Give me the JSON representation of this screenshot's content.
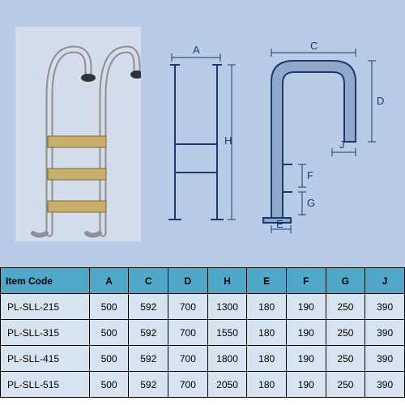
{
  "diagram": {
    "background_color": "#b8cce8",
    "photo_bg": "#d4ddeb",
    "line_color": "#1a3a6e",
    "fill_color": "#8fa8cc",
    "dim_labels": {
      "A": "A",
      "C": "C",
      "D": "D",
      "H": "H",
      "E": "E",
      "F": "F",
      "G": "G",
      "J": "J"
    }
  },
  "table": {
    "header_bg": "#4ea8c7",
    "cell_bg": "#d6e3f1",
    "border_color": "#000000",
    "columns": [
      "Item Code",
      "A",
      "C",
      "D",
      "H",
      "E",
      "F",
      "G",
      "J"
    ],
    "col_widths_pct": [
      22,
      9.75,
      9.75,
      9.75,
      9.75,
      9.75,
      9.75,
      9.75,
      9.75
    ],
    "rows": [
      [
        "PL-SLL-215",
        "500",
        "592",
        "700",
        "1300",
        "180",
        "190",
        "250",
        "390"
      ],
      [
        "PL-SLL-315",
        "500",
        "592",
        "700",
        "1550",
        "180",
        "190",
        "250",
        "390"
      ],
      [
        "PL-SLL-415",
        "500",
        "592",
        "700",
        "1800",
        "180",
        "190",
        "250",
        "390"
      ],
      [
        "PL-SLL-515",
        "500",
        "592",
        "700",
        "2050",
        "180",
        "190",
        "250",
        "390"
      ]
    ]
  }
}
